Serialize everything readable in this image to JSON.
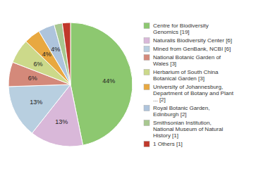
{
  "chart_data": {
    "type": "pie",
    "categories": [
      "Centre for Biodiversity\nGenomics [19]",
      "Naturalis Biodiversity Center [6]",
      "Mined from GenBank, NCBI [6]",
      "National Botanic Garden of\nWales [3]",
      "Herbarium of South China\nBotanical Garden [3]",
      "University of Johannesburg,\nDepartment of Botany and Plant\n... [2]",
      "Royal Botanic Garden,\nEdinburgh [2]",
      "Smithsonian Institution,\nNational Museum of Natural\nHistory [1]",
      "1 Others [1]"
    ],
    "values": [
      44,
      13,
      13,
      6,
      6,
      4,
      4,
      2,
      2
    ],
    "value_labels": [
      "44%",
      "13%",
      "13%",
      "6%",
      "6%",
      "4%",
      "4%",
      null,
      null
    ],
    "colors": [
      "#8dc870",
      "#d9b8d9",
      "#b8cfe0",
      "#d4897a",
      "#ccd98a",
      "#e8a840",
      "#aec4dc",
      "#a8c890",
      "#c0392b"
    ],
    "data_labels": true,
    "legend": "right"
  }
}
